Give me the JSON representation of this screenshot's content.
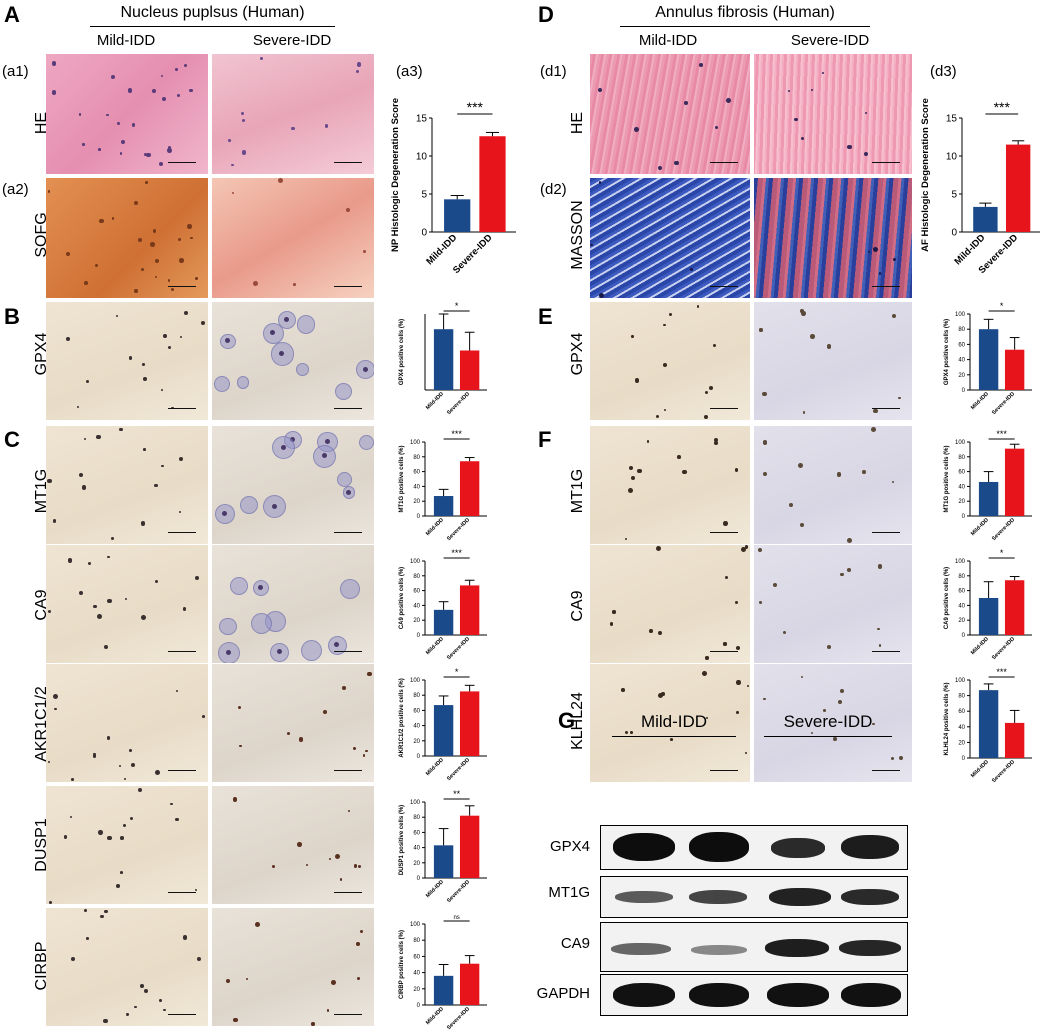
{
  "panels": {
    "A": "A",
    "B": "B",
    "C": "C",
    "D": "D",
    "E": "E",
    "F": "F",
    "G": "G",
    "a1": "(a1)",
    "a2": "(a2)",
    "a3": "(a3)",
    "d1": "(d1)",
    "d2": "(d2)",
    "d3": "(d3)"
  },
  "left": {
    "title": "Nucleus puplsus (Human)",
    "col_mild": "Mild-IDD",
    "col_severe": "Severe-IDD",
    "rows": [
      "HE",
      "SOFG",
      "GPX4",
      "MT1G",
      "CA9",
      "AKR1C1/2",
      "DUSP1",
      "CIRBP"
    ]
  },
  "right": {
    "title": "Annulus fibrosis (Human)",
    "col_mild": "Mild-IDD",
    "col_severe": "Severe-IDD",
    "rows": [
      "HE",
      "MASSON",
      "GPX4",
      "MT1G",
      "CA9",
      "KLHL24"
    ]
  },
  "colors": {
    "mild": "#1a4a8a",
    "severe": "#e8141b",
    "ihc_bg": "#eee2cf",
    "he": "#e79ab4",
    "sofg": "#d77f3e",
    "masson": "#2f4aa0"
  },
  "chart_data": [
    {
      "id": "a3",
      "type": "bar",
      "categories": [
        "Mild-IDD",
        "Severe-IDD"
      ],
      "values": [
        4.3,
        12.6
      ],
      "errors": [
        0.5,
        0.5
      ],
      "ylabel": "NP Histologic Degeneration Score",
      "ylim": [
        0,
        15
      ],
      "yticks": [
        0,
        5,
        10,
        15
      ],
      "sig": "***"
    },
    {
      "id": "B",
      "type": "bar",
      "categories": [
        "Mild-IDD",
        "Severe-IDD"
      ],
      "values": [
        80,
        52
      ],
      "errors": [
        20,
        24
      ],
      "ylabel": "GPX4 positive cells (%)",
      "ylim": [
        0,
        100
      ],
      "yticks": [],
      "sig": "*"
    },
    {
      "id": "C1",
      "type": "bar",
      "categories": [
        "Mild-IDD",
        "Severe-IDD"
      ],
      "values": [
        27,
        74
      ],
      "errors": [
        9,
        5
      ],
      "ylabel": "MT1G positive cells (%)",
      "ylim": [
        0,
        100
      ],
      "yticks": [
        0,
        20,
        40,
        60,
        80,
        100
      ],
      "sig": "***"
    },
    {
      "id": "C2",
      "type": "bar",
      "categories": [
        "Mild-IDD",
        "Severe-IDD"
      ],
      "values": [
        34,
        67
      ],
      "errors": [
        11,
        7
      ],
      "ylabel": "CA9 positive cells (%)",
      "ylim": [
        0,
        100
      ],
      "yticks": [
        0,
        20,
        40,
        60,
        80,
        100
      ],
      "sig": "***"
    },
    {
      "id": "C3",
      "type": "bar",
      "categories": [
        "Mild-IDD",
        "Severe-IDD"
      ],
      "values": [
        67,
        85
      ],
      "errors": [
        12,
        8
      ],
      "ylabel": "AKR1C1/2 positive cells (%)",
      "ylim": [
        0,
        100
      ],
      "yticks": [
        0,
        20,
        40,
        60,
        80,
        100
      ],
      "sig": "*"
    },
    {
      "id": "C4",
      "type": "bar",
      "categories": [
        "Mild-IDD",
        "Severe-IDD"
      ],
      "values": [
        43,
        82
      ],
      "errors": [
        22,
        13
      ],
      "ylabel": "DUSP1 positive cells (%)",
      "ylim": [
        0,
        100
      ],
      "yticks": [
        0,
        20,
        40,
        60,
        80,
        100
      ],
      "sig": "**"
    },
    {
      "id": "C5",
      "type": "bar",
      "categories": [
        "Mild-IDD",
        "Severe-IDD"
      ],
      "values": [
        36,
        51
      ],
      "errors": [
        14,
        10
      ],
      "ylabel": "CIRBP positive cells (%)",
      "ylim": [
        0,
        100
      ],
      "yticks": [
        0,
        20,
        40,
        60,
        80,
        100
      ],
      "sig": "ns"
    },
    {
      "id": "d3",
      "type": "bar",
      "categories": [
        "Mild-IDD",
        "Severe-IDD"
      ],
      "values": [
        3.3,
        11.5
      ],
      "errors": [
        0.5,
        0.5
      ],
      "ylabel": "AF Histologic Degeneration Score",
      "ylim": [
        0,
        15
      ],
      "yticks": [
        0,
        5,
        10,
        15
      ],
      "sig": "***"
    },
    {
      "id": "E",
      "type": "bar",
      "categories": [
        "Mild-IDD",
        "Severe-IDD"
      ],
      "values": [
        80,
        53
      ],
      "errors": [
        13,
        16
      ],
      "ylabel": "GPX4 positive cells (%)",
      "ylim": [
        0,
        100
      ],
      "yticks": [
        0,
        20,
        40,
        60,
        80,
        100
      ],
      "sig": "*"
    },
    {
      "id": "F1",
      "type": "bar",
      "categories": [
        "Mild-IDD",
        "Severe-IDD"
      ],
      "values": [
        46,
        91
      ],
      "errors": [
        14,
        6
      ],
      "ylabel": "MT1G positive cells (%)",
      "ylim": [
        0,
        100
      ],
      "yticks": [
        0,
        20,
        40,
        60,
        80,
        100
      ],
      "sig": "***"
    },
    {
      "id": "F2",
      "type": "bar",
      "categories": [
        "Mild-IDD",
        "Severe-IDD"
      ],
      "values": [
        50,
        74
      ],
      "errors": [
        22,
        5
      ],
      "ylabel": "CA9 positive cells (%)",
      "ylim": [
        0,
        100
      ],
      "yticks": [
        0,
        20,
        40,
        60,
        80,
        100
      ],
      "sig": "*"
    },
    {
      "id": "F3",
      "type": "bar",
      "categories": [
        "Mild-IDD",
        "Severe-IDD"
      ],
      "values": [
        87,
        45
      ],
      "errors": [
        8,
        16
      ],
      "ylabel": "KLHL24 positive cells (%)",
      "ylim": [
        0,
        100
      ],
      "yticks": [
        0,
        20,
        40,
        60,
        80,
        100
      ],
      "sig": "***"
    }
  ],
  "western": {
    "mild": "Mild-IDD",
    "severe": "Severe-IDD",
    "rows": [
      "GPX4",
      "MT1G",
      "CA9",
      "GAPDH"
    ]
  }
}
